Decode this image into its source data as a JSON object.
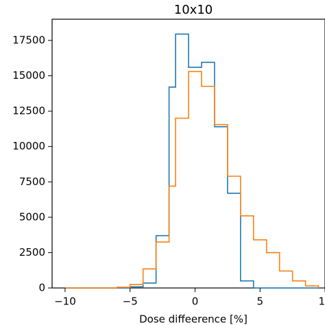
{
  "chart_data": {
    "type": "histogram",
    "title": "10x10",
    "xlabel": "Dose diffeerence [%]",
    "ylabel": "",
    "xlim": [
      -11,
      10
    ],
    "ylim": [
      0,
      19000
    ],
    "xticks": [
      -10,
      -5,
      0,
      5,
      10
    ],
    "xtick_labels": [
      "−10",
      "−5",
      "0",
      "5",
      "10"
    ],
    "yticks": [
      0,
      2500,
      5000,
      7500,
      10000,
      12500,
      15000,
      17500
    ],
    "ytick_labels": [
      "0",
      "2500",
      "5000",
      "7500",
      "10000",
      "12500",
      "15000",
      "17500"
    ],
    "grid": false,
    "series": [
      {
        "color": "#1f77b4",
        "bin_edges": [
          -10.0,
          -9.0,
          -8.0,
          -7.0,
          -6.0,
          -5.0,
          -4.0,
          -3.0,
          -2.0,
          -1.5,
          -0.5,
          0.5,
          1.5,
          2.5,
          3.5,
          4.5,
          5.5,
          6.5,
          7.5,
          8.5,
          9.5
        ],
        "values": [
          0,
          0,
          0,
          0,
          0,
          80,
          350,
          3700,
          14200,
          17950,
          15600,
          15950,
          11400,
          6700,
          500,
          0,
          0,
          0,
          0,
          0
        ]
      },
      {
        "color": "#ff7f0e",
        "bin_edges": [
          -10.0,
          -9.0,
          -8.0,
          -7.0,
          -6.0,
          -5.0,
          -4.0,
          -3.0,
          -2.0,
          -1.5,
          -0.5,
          0.5,
          1.5,
          2.5,
          3.5,
          4.5,
          5.5,
          6.5,
          7.5,
          8.5,
          9.5
        ],
        "values": [
          0,
          0,
          0,
          0,
          50,
          250,
          1350,
          3250,
          7200,
          12000,
          15300,
          14250,
          11550,
          7900,
          5100,
          3400,
          2500,
          1200,
          500,
          150
        ]
      }
    ]
  }
}
